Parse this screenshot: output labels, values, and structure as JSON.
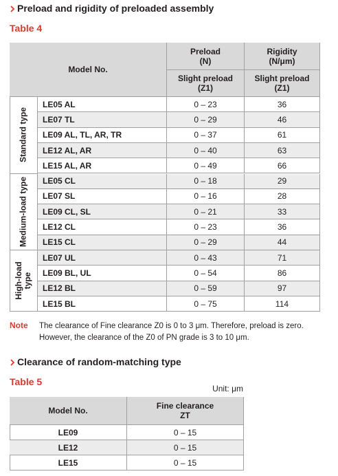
{
  "section1": {
    "heading": "Preload and rigidity of preloaded assembly",
    "table_label": "Table 4",
    "table": {
      "header": {
        "model": "Model No.",
        "preload": [
          "Preload",
          "(N)"
        ],
        "rigidity": [
          "Rigidity",
          "(N/μm)"
        ],
        "preload_sub": [
          "Slight preload",
          "(Z1)"
        ],
        "rigidity_sub": [
          "Slight preload",
          "(Z1)"
        ]
      },
      "groups": [
        {
          "label": [
            "Standard type"
          ],
          "rows": [
            [
              "LE05 AL",
              "0 – 23",
              36
            ],
            [
              "LE07 TL",
              "0 – 29",
              46
            ],
            [
              "LE09 AL, TL, AR, TR",
              "0 – 37",
              61
            ],
            [
              "LE12 AL, AR",
              "0 – 40",
              63
            ],
            [
              "LE15 AL, AR",
              "0 – 49",
              66
            ]
          ]
        },
        {
          "label": [
            "Medium-load type"
          ],
          "rows": [
            [
              "LE05 CL",
              "0 – 18",
              29
            ],
            [
              "LE07 SL",
              "0 – 16",
              28
            ],
            [
              "LE09 CL, SL",
              "0 – 21",
              33
            ],
            [
              "LE12 CL",
              "0 – 23",
              36
            ],
            [
              "LE15 CL",
              "0 – 29",
              44
            ]
          ]
        },
        {
          "label": [
            "High-load",
            "type"
          ],
          "rows": [
            [
              "LE07 UL",
              "0 – 43",
              71
            ],
            [
              "LE09 BL, UL",
              "0 – 54",
              86
            ],
            [
              "LE12 BL",
              "0 – 59",
              97
            ],
            [
              "LE15 BL",
              "0 – 75",
              114
            ]
          ]
        }
      ]
    }
  },
  "note": {
    "label": "Note",
    "lines": [
      "The clearance of Fine clearance Z0 is 0 to 3 μm. Therefore, preload is zero.",
      "However, the clearance of the Z0 of PN grade is 3 to 10 μm."
    ]
  },
  "section2": {
    "heading": "Clearance of random-matching type",
    "table_label": "Table 5",
    "unit": "Unit: μm",
    "table": {
      "header": {
        "model": "Model No.",
        "clearance": [
          "Fine clearance",
          "ZT"
        ]
      },
      "rows": [
        [
          "LE09",
          "0 – 15"
        ],
        [
          "LE12",
          "0 – 15"
        ],
        [
          "LE15",
          "0 – 15"
        ]
      ]
    }
  }
}
